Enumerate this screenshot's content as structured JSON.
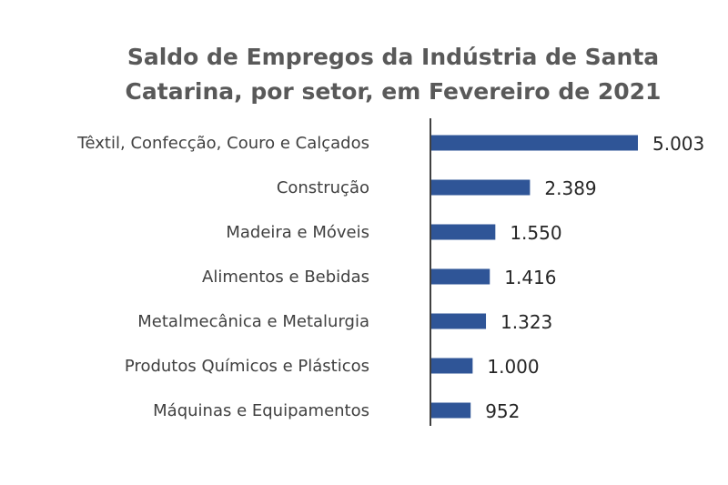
{
  "chart_data": {
    "type": "bar",
    "orientation": "horizontal",
    "title_lines": [
      "Saldo de Empregos da Indústria de Santa",
      "Catarina, por setor, em Fevereiro de 2021"
    ],
    "categories": [
      "Têxtil, Confecção, Couro e Calçados",
      "Construção",
      "Madeira e Móveis",
      "Alimentos e Bebidas",
      "Metalmecânica e Metalurgia",
      "Produtos Químicos e Plásticos",
      "Máquinas e Equipamentos"
    ],
    "values": [
      5003,
      2389,
      1550,
      1416,
      1323,
      1000,
      952
    ],
    "data_labels": [
      "5.003",
      "2.389",
      "1.550",
      "1.416",
      "1.323",
      "1.000",
      "952"
    ],
    "xlim": [
      0,
      5003
    ],
    "grid": false,
    "legend": "none",
    "bar_color": "#2F5597",
    "title_color": "#595959"
  }
}
